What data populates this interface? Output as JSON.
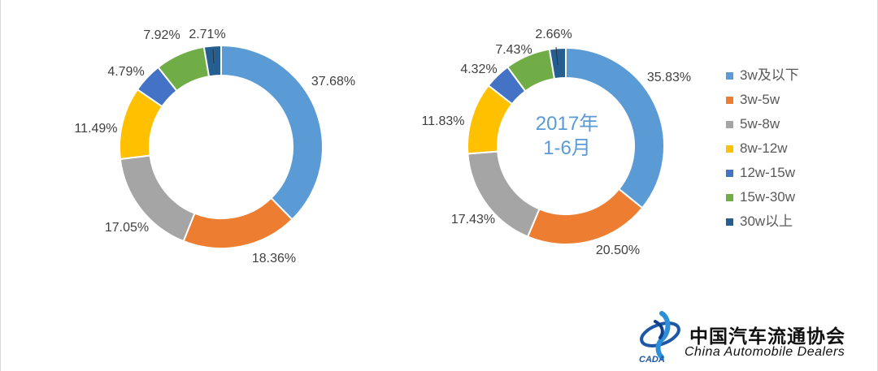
{
  "chart_data": [
    {
      "type": "donut",
      "categories": [
        "3w及以下",
        "3w-5w",
        "5w-8w",
        "8w-12w",
        "12w-15w",
        "15w-30w",
        "30w以上"
      ],
      "values": [
        37.68,
        18.36,
        17.05,
        11.49,
        4.79,
        7.92,
        2.71
      ],
      "labels": [
        "37.68%",
        "18.36%",
        "17.05%",
        "11.49%",
        "4.79%",
        "7.92%",
        "2.71%"
      ],
      "unit": "%"
    },
    {
      "type": "donut",
      "center_text": [
        "2017年",
        "1-6月"
      ],
      "categories": [
        "3w及以下",
        "3w-5w",
        "5w-8w",
        "8w-12w",
        "12w-15w",
        "15w-30w",
        "30w以上"
      ],
      "values": [
        35.83,
        20.5,
        17.43,
        11.83,
        4.32,
        7.43,
        2.66
      ],
      "labels": [
        "35.83%",
        "20.50%",
        "17.43%",
        "11.83%",
        "4.32%",
        "7.43%",
        "2.66%"
      ],
      "unit": "%"
    }
  ],
  "legend": {
    "position": "right",
    "items": [
      {
        "label": "3w及以下",
        "color": "#5b9bd5"
      },
      {
        "label": "3w-5w",
        "color": "#ed7d31"
      },
      {
        "label": "5w-8w",
        "color": "#a5a5a5"
      },
      {
        "label": "8w-12w",
        "color": "#ffc000"
      },
      {
        "label": "12w-15w",
        "color": "#4472c4"
      },
      {
        "label": "15w-30w",
        "color": "#70ad47"
      },
      {
        "label": "30w以上",
        "color": "#255e91"
      }
    ]
  },
  "logo": {
    "name_cn": "中国汽车流通协会",
    "name_en": "China  Automobile Dealers",
    "abbr": "CADA"
  }
}
